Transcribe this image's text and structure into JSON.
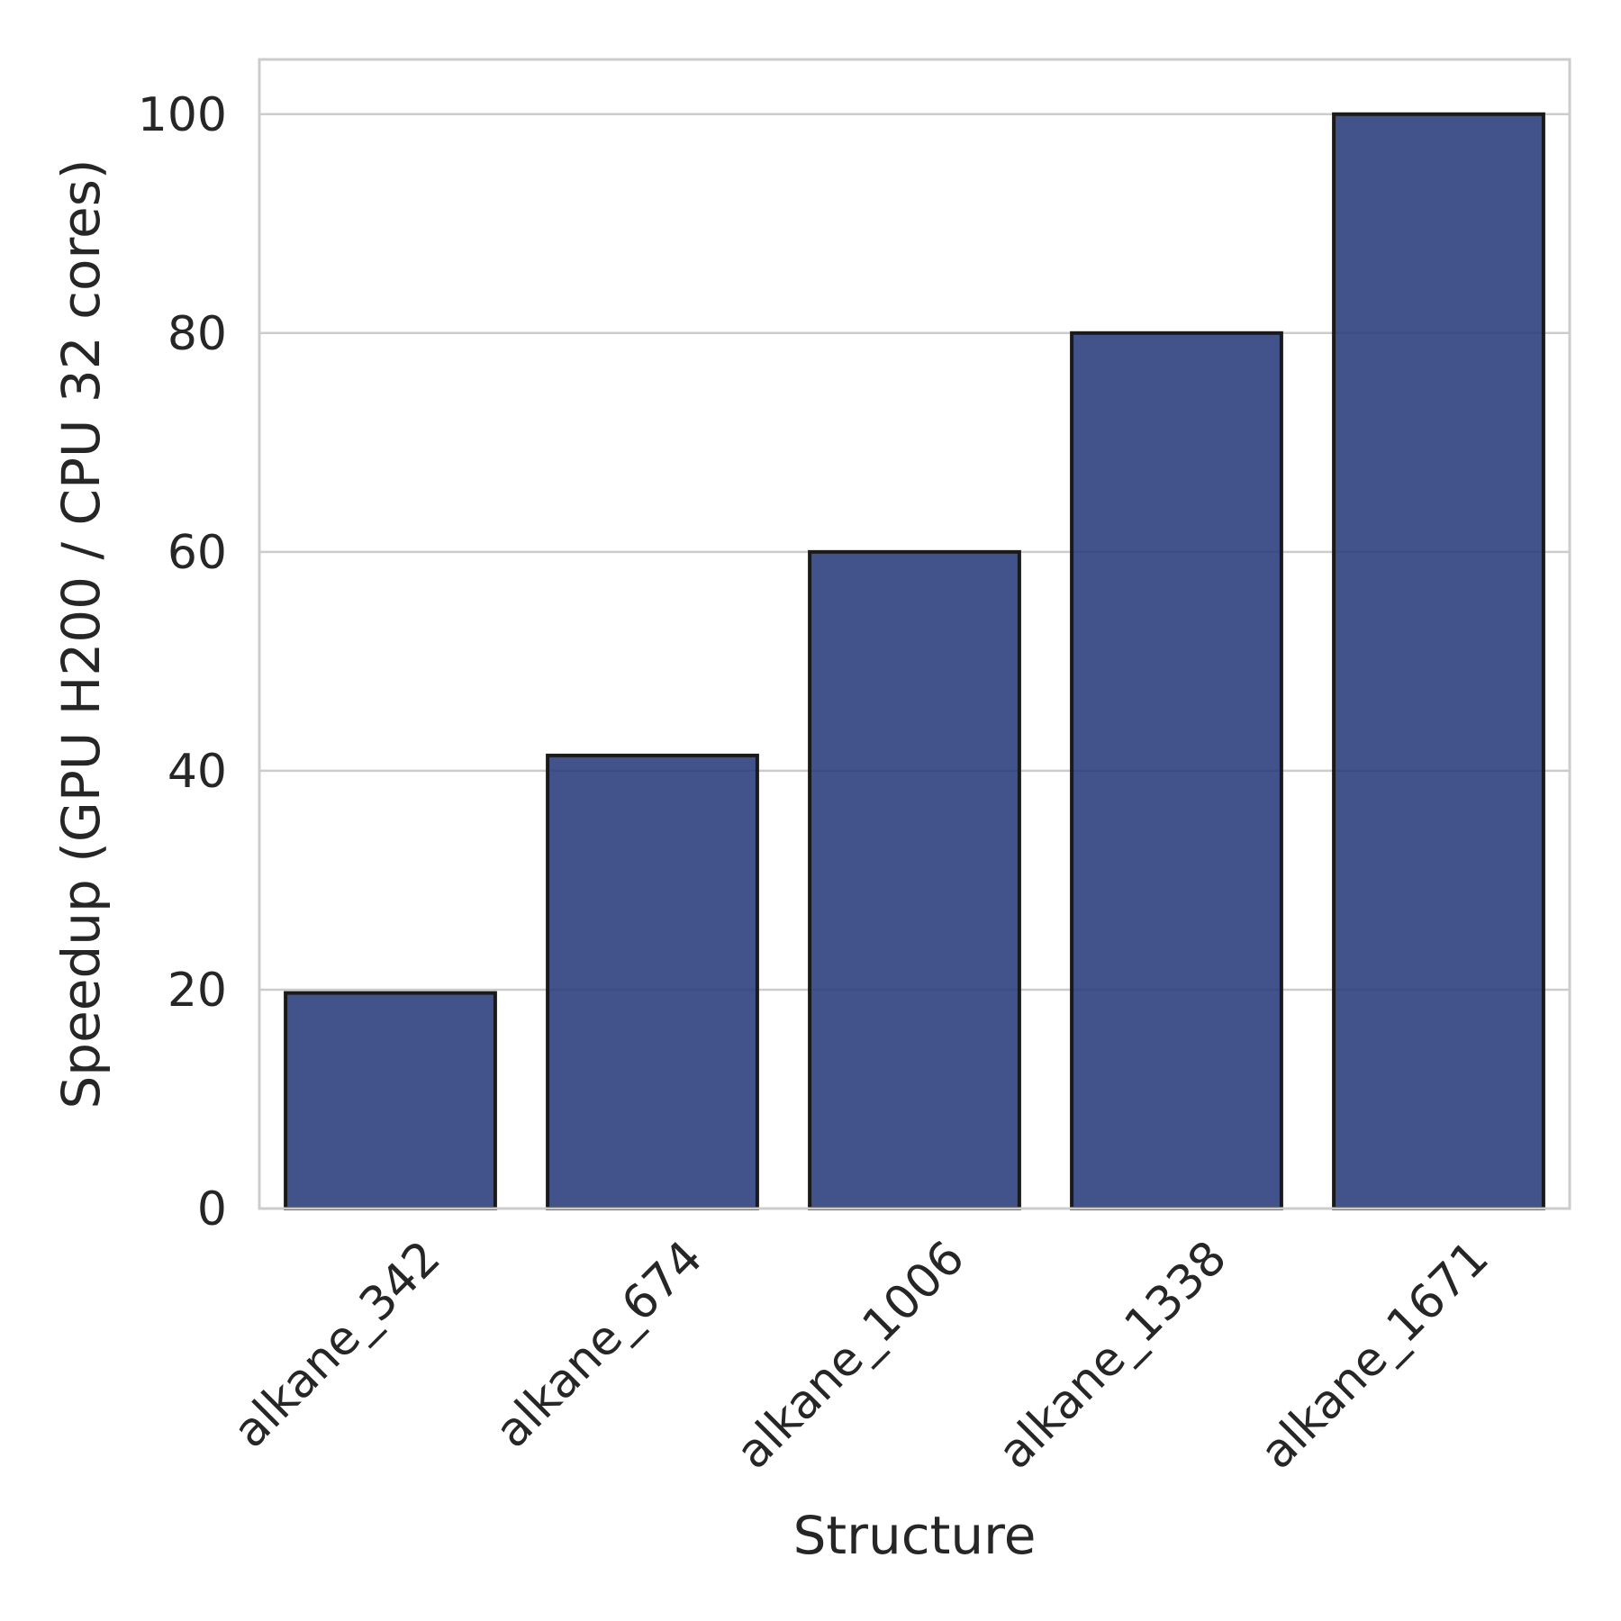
{
  "chart_data": {
    "type": "bar",
    "title": "",
    "xlabel": "Structure",
    "ylabel": "Speedup (GPU H200 / CPU 32 cores)",
    "categories": [
      "alkane_342",
      "alkane_674",
      "alkane_1006",
      "alkane_1338",
      "alkane_1671"
    ],
    "values": [
      19.7,
      41.4,
      60.0,
      80.0,
      100.0
    ],
    "ylim": [
      0,
      105
    ],
    "yticks": [
      0,
      20,
      40,
      60,
      80,
      100
    ],
    "grid": true,
    "legend": "none",
    "bar_color": "#283a7a",
    "bar_edge_color": "#1a1a1a",
    "grid_color": "#cccccc"
  }
}
